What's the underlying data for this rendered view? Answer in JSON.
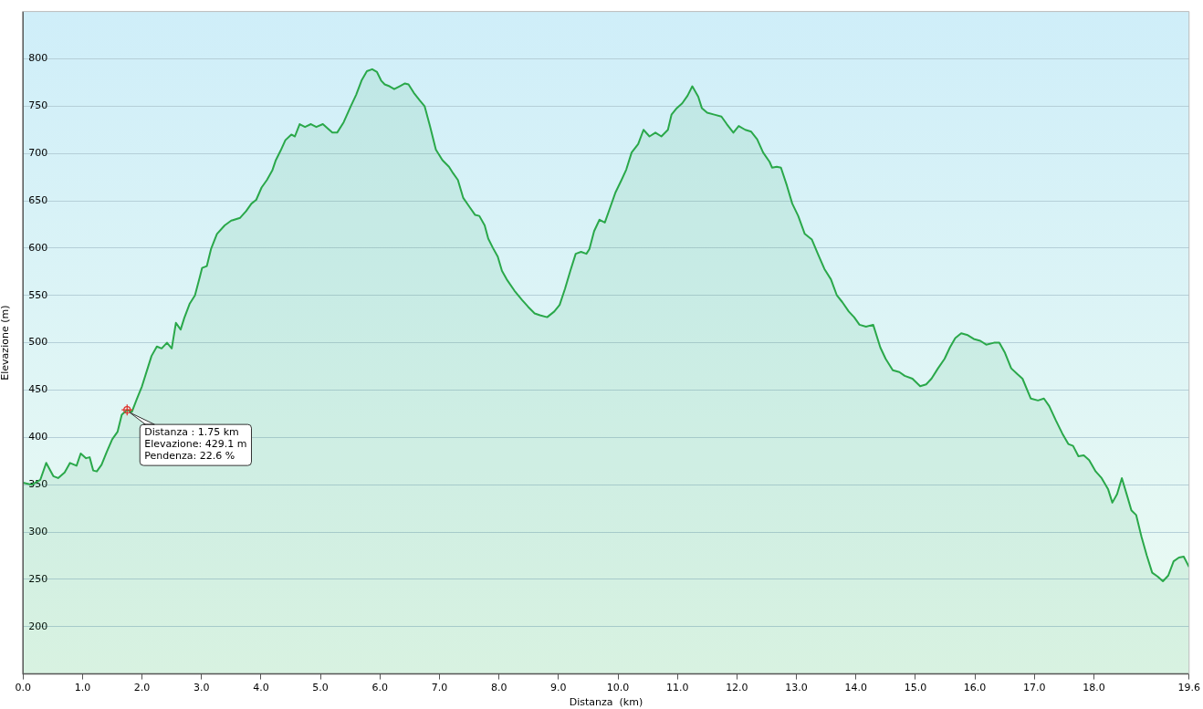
{
  "chart_data": {
    "type": "area",
    "xlabel": "Distanza  (km)",
    "ylabel": "Elevazione (m)",
    "x": [
      0,
      0.15,
      0.29,
      0.39,
      0.51,
      0.59,
      0.7,
      0.79,
      0.9,
      0.97,
      1.06,
      1.12,
      1.18,
      1.24,
      1.32,
      1.41,
      1.5,
      1.59,
      1.66,
      1.75,
      1.83,
      1.91,
      2.0,
      2.09,
      2.16,
      2.25,
      2.33,
      2.42,
      2.5,
      2.57,
      2.65,
      2.71,
      2.8,
      2.89,
      2.97,
      3.01,
      3.09,
      3.16,
      3.26,
      3.39,
      3.5,
      3.65,
      3.75,
      3.84,
      3.92,
      4.01,
      4.1,
      4.19,
      4.25,
      4.33,
      4.41,
      4.51,
      4.57,
      4.65,
      4.74,
      4.84,
      4.93,
      5.04,
      5.13,
      5.2,
      5.28,
      5.39,
      5.51,
      5.6,
      5.69,
      5.78,
      5.87,
      5.95,
      6.02,
      6.08,
      6.16,
      6.24,
      6.33,
      6.42,
      6.48,
      6.57,
      6.67,
      6.75,
      6.84,
      6.94,
      7.05,
      7.16,
      7.23,
      7.31,
      7.4,
      7.51,
      7.6,
      7.67,
      7.76,
      7.82,
      7.9,
      7.98,
      8.05,
      8.13,
      8.26,
      8.39,
      8.49,
      8.6,
      8.69,
      8.81,
      8.93,
      9.02,
      9.11,
      9.2,
      9.29,
      9.38,
      9.47,
      9.52,
      9.6,
      9.69,
      9.78,
      9.87,
      9.96,
      10.06,
      10.14,
      10.23,
      10.34,
      10.43,
      10.53,
      10.63,
      10.73,
      10.84,
      10.9,
      10.99,
      11.08,
      11.17,
      11.25,
      11.35,
      11.41,
      11.5,
      11.62,
      11.74,
      11.83,
      11.94,
      12.03,
      12.14,
      12.24,
      12.34,
      12.44,
      12.55,
      12.59,
      12.67,
      12.74,
      12.84,
      12.93,
      13.03,
      13.14,
      13.26,
      13.36,
      13.47,
      13.58,
      13.68,
      13.77,
      13.88,
      13.97,
      14.06,
      14.17,
      14.29,
      14.41,
      14.5,
      14.62,
      14.73,
      14.82,
      14.95,
      15.08,
      15.18,
      15.27,
      15.38,
      15.49,
      15.58,
      15.67,
      15.77,
      15.88,
      15.98,
      16.09,
      16.19,
      16.32,
      16.41,
      16.5,
      16.61,
      16.71,
      16.8,
      16.94,
      17.06,
      17.16,
      17.25,
      17.36,
      17.47,
      17.57,
      17.65,
      17.74,
      17.83,
      17.92,
      18.03,
      18.13,
      18.24,
      18.31,
      18.39,
      18.47,
      18.56,
      18.63,
      18.71,
      18.8,
      18.89,
      18.98,
      19.07,
      19.16,
      19.25,
      19.34,
      19.43,
      19.51,
      19.6
    ],
    "series": [
      {
        "color": "#2aa84a",
        "values": [
          352,
          350,
          355,
          373,
          359,
          357,
          363,
          373,
          370,
          383,
          378,
          379,
          365,
          364,
          371,
          385,
          398,
          406,
          424,
          429,
          427,
          440,
          454,
          472,
          486,
          496,
          494,
          500,
          494,
          521,
          514,
          526,
          541,
          550,
          569,
          579,
          581,
          599,
          615,
          624,
          629,
          632,
          639,
          647,
          651,
          664,
          672,
          682,
          693,
          703,
          714,
          720,
          718,
          731,
          728,
          731,
          728,
          731,
          726,
          722,
          722,
          733,
          750,
          762,
          777,
          787,
          789,
          786,
          777,
          773,
          771,
          768,
          771,
          774,
          773,
          764,
          756,
          750,
          729,
          704,
          693,
          686,
          679,
          672,
          653,
          643,
          635,
          634,
          624,
          610,
          600,
          591,
          576,
          567,
          555,
          545,
          538,
          531,
          529,
          527,
          533,
          540,
          557,
          576,
          594,
          596,
          594,
          599,
          618,
          630,
          627,
          643,
          659,
          672,
          683,
          701,
          710,
          725,
          718,
          722,
          718,
          725,
          741,
          748,
          753,
          761,
          771,
          760,
          748,
          743,
          741,
          739,
          731,
          722,
          729,
          725,
          723,
          715,
          701,
          691,
          685,
          686,
          685,
          666,
          647,
          634,
          615,
          609,
          594,
          578,
          567,
          550,
          543,
          533,
          527,
          519,
          517,
          519,
          495,
          483,
          471,
          469,
          465,
          462,
          454,
          456,
          462,
          473,
          483,
          495,
          505,
          510,
          508,
          504,
          502,
          498,
          500,
          500,
          490,
          473,
          467,
          462,
          441,
          439,
          441,
          433,
          418,
          404,
          393,
          391,
          380,
          381,
          376,
          364,
          357,
          345,
          331,
          340,
          357,
          338,
          323,
          318,
          295,
          275,
          257,
          253,
          248,
          254,
          269,
          273,
          274,
          263
        ]
      }
    ],
    "xlim": [
      0,
      19.6
    ],
    "ylim": [
      150,
      850
    ],
    "xticks": [
      {
        "value": 0,
        "label": "0.0"
      },
      {
        "value": 1,
        "label": "1.0"
      },
      {
        "value": 2,
        "label": "2.0"
      },
      {
        "value": 3,
        "label": "3.0"
      },
      {
        "value": 4,
        "label": "4.0"
      },
      {
        "value": 5,
        "label": "5.0"
      },
      {
        "value": 6,
        "label": "6.0"
      },
      {
        "value": 7,
        "label": "7.0"
      },
      {
        "value": 8,
        "label": "8.0"
      },
      {
        "value": 9,
        "label": "9.0"
      },
      {
        "value": 10,
        "label": "10.0"
      },
      {
        "value": 11,
        "label": "11.0"
      },
      {
        "value": 12,
        "label": "12.0"
      },
      {
        "value": 13,
        "label": "13.0"
      },
      {
        "value": 14,
        "label": "14.0"
      },
      {
        "value": 15,
        "label": "15.0"
      },
      {
        "value": 16,
        "label": "16.0"
      },
      {
        "value": 17,
        "label": "17.0"
      },
      {
        "value": 18,
        "label": "18.0"
      },
      19.6
    ],
    "yticks": [
      200,
      250,
      300,
      350,
      400,
      450,
      500,
      550,
      600,
      650,
      700,
      750,
      800
    ],
    "grid": "y",
    "legend": false,
    "marker": "none",
    "line_style": "solid",
    "annotations": [
      {
        "text": "Distanza : 1.75 km\nElevazione: 429.1 m\nPendenza: 22.6 %",
        "x": 1.75,
        "y": 429.1
      }
    ]
  }
}
